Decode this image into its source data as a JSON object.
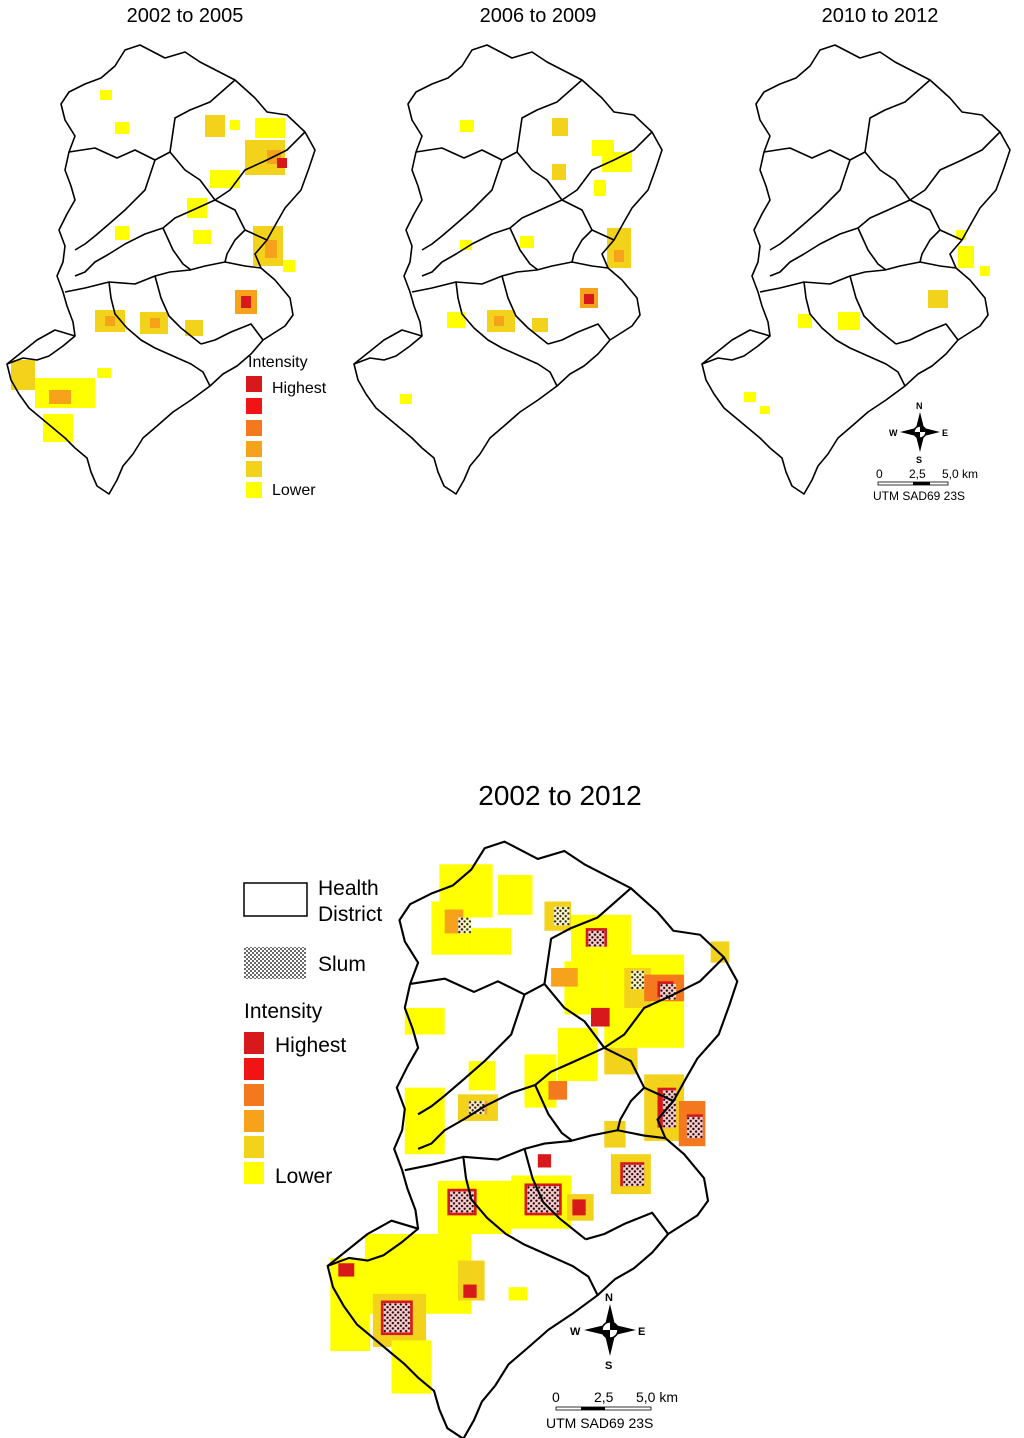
{
  "panels": [
    {
      "title": "2002 to 2005"
    },
    {
      "title": "2006 to 2009"
    },
    {
      "title": "2010 to 2012"
    }
  ],
  "main": {
    "title": "2002 to 2012"
  },
  "small_legend": {
    "title": "Intensity",
    "highest": "Highest",
    "lower": "Lower",
    "colors": [
      "#d7191c",
      "#f01414",
      "#f4781e",
      "#f7a21b",
      "#f2d21a",
      "#ffff00"
    ]
  },
  "big_legend": {
    "district_label_1": "Health",
    "district_label_2": "District",
    "slum_label": "Slum",
    "title": "Intensity",
    "highest": "Highest",
    "lower": "Lower",
    "colors": [
      "#d7191c",
      "#f01414",
      "#f4781e",
      "#f7a21b",
      "#f2d21a",
      "#ffff00"
    ]
  },
  "compass": {
    "n": "N",
    "s": "S",
    "e": "E",
    "w": "W"
  },
  "scale": {
    "t0": "0",
    "t1": "2,5",
    "t2": "5,0 km",
    "projection": "UTM SAD69 23S"
  }
}
